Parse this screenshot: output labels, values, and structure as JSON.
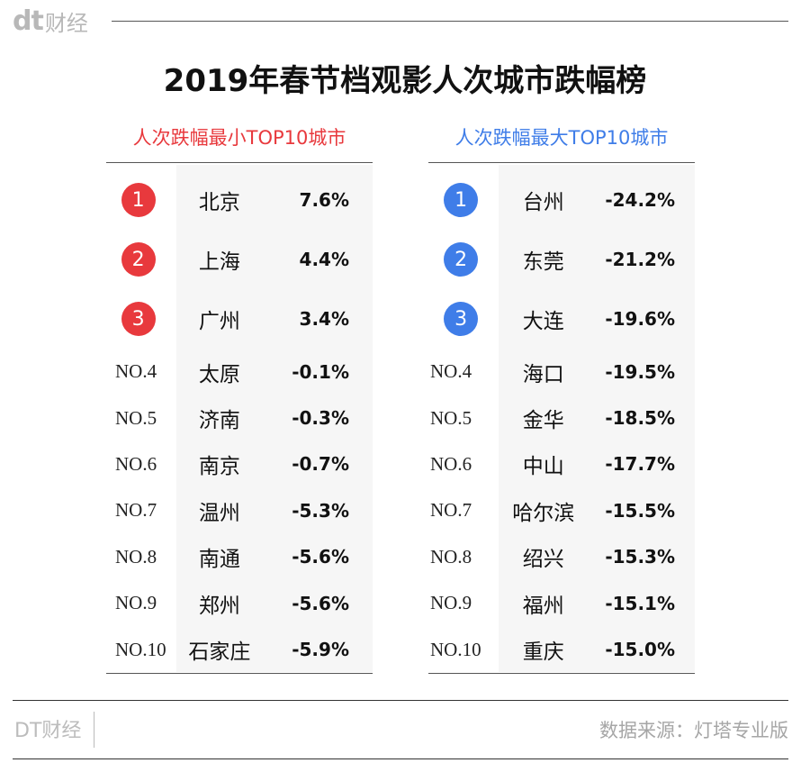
{
  "brand": {
    "mark": "dt",
    "text": "财经"
  },
  "title": "2019年春节档观影人次城市跌幅榜",
  "chart_data": [
    {
      "type": "table",
      "title": "人次跌幅最小TOP10城市",
      "rows": [
        {
          "rank": "1",
          "city": "北京",
          "change": "7.6%"
        },
        {
          "rank": "2",
          "city": "上海",
          "change": "4.4%"
        },
        {
          "rank": "3",
          "city": "广州",
          "change": "3.4%"
        },
        {
          "rank": "NO.4",
          "city": "太原",
          "change": "-0.1%"
        },
        {
          "rank": "NO.5",
          "city": "济南",
          "change": "-0.3%"
        },
        {
          "rank": "NO.6",
          "city": "南京",
          "change": "-0.7%"
        },
        {
          "rank": "NO.7",
          "city": "温州",
          "change": "-5.3%"
        },
        {
          "rank": "NO.8",
          "city": "南通",
          "change": "-5.6%"
        },
        {
          "rank": "NO.9",
          "city": "郑州",
          "change": "-5.6%"
        },
        {
          "rank": "NO.10",
          "city": "石家庄",
          "change": "-5.9%"
        }
      ],
      "accent_color": "#e8393d"
    },
    {
      "type": "table",
      "title": "人次跌幅最大TOP10城市",
      "rows": [
        {
          "rank": "1",
          "city": "台州",
          "change": "-24.2%"
        },
        {
          "rank": "2",
          "city": "东莞",
          "change": "-21.2%"
        },
        {
          "rank": "3",
          "city": "大连",
          "change": "-19.6%"
        },
        {
          "rank": "NO.4",
          "city": "海口",
          "change": "-19.5%"
        },
        {
          "rank": "NO.5",
          "city": "金华",
          "change": "-18.5%"
        },
        {
          "rank": "NO.6",
          "city": "中山",
          "change": "-17.7%"
        },
        {
          "rank": "NO.7",
          "city": "哈尔滨",
          "change": "-15.5%"
        },
        {
          "rank": "NO.8",
          "city": "绍兴",
          "change": "-15.3%"
        },
        {
          "rank": "NO.9",
          "city": "福州",
          "change": "-15.1%"
        },
        {
          "rank": "NO.10",
          "city": "重庆",
          "change": "-15.0%"
        }
      ],
      "accent_color": "#3f7de8"
    }
  ],
  "footer": {
    "brand": "DT财经",
    "source": "数据来源：灯塔专业版"
  }
}
